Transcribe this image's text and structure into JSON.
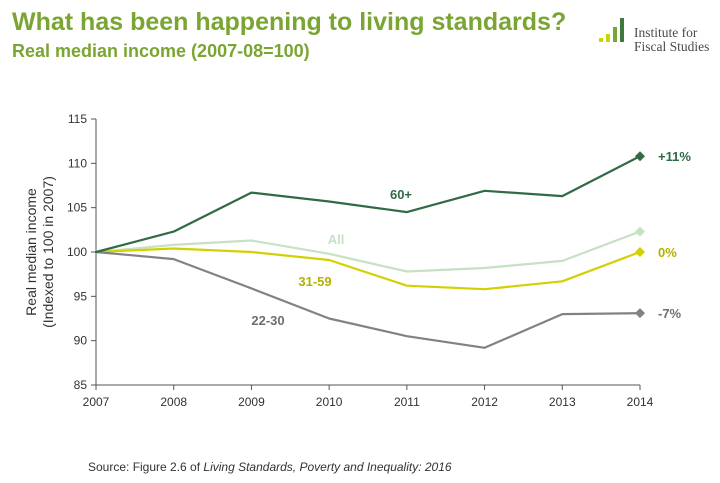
{
  "header": {
    "title": "What has been happening to living standards?",
    "subtitle": "Real median income (2007-08=100)"
  },
  "logo": {
    "line1": "Institute for",
    "line2": "Fiscal Studies",
    "icon": "bar-chart-logo-icon",
    "colors": [
      "#c5d800",
      "#c5d800",
      "#7aa532",
      "#3d7a3d"
    ]
  },
  "source": {
    "prefix": "Source: Figure 2.6 of ",
    "title": "Living Standards, Poverty and Inequality: 2016"
  },
  "chart_data": {
    "type": "line",
    "x": [
      2007,
      2008,
      2009,
      2010,
      2011,
      2012,
      2013,
      2014
    ],
    "ylabel": "Real median income (Indexed to 100 in 2007)",
    "ylabel_lines": [
      "Real median income",
      "(Indexed to 100 in 2007)"
    ],
    "ylim": [
      85,
      115
    ],
    "yticks": [
      85,
      90,
      95,
      100,
      105,
      110,
      115
    ],
    "grid": false,
    "legend": "none",
    "series": [
      {
        "name": "60+",
        "color": "#2f6b45",
        "values": [
          100,
          102.3,
          106.7,
          105.7,
          104.5,
          106.9,
          106.3,
          110.8
        ],
        "end_label": "+11%",
        "label_color": "#2f6b45"
      },
      {
        "name": "All",
        "color": "#c6e1c3",
        "values": [
          100,
          100.8,
          101.3,
          99.8,
          97.8,
          98.2,
          99.0,
          102.3
        ],
        "end_label": "",
        "label_color": "#c6e1c3"
      },
      {
        "name": "31-59",
        "color": "#d2d000",
        "values": [
          100,
          100.4,
          100.0,
          99.1,
          96.2,
          95.8,
          96.7,
          100.0
        ],
        "end_label": "0%",
        "label_color": "#b3b100"
      },
      {
        "name": "22-30",
        "color": "#828282",
        "values": [
          100,
          99.2,
          95.9,
          92.5,
          90.5,
          89.2,
          93.0,
          93.1
        ],
        "end_label": "-7%",
        "label_color": "#6e6e6e"
      }
    ]
  }
}
